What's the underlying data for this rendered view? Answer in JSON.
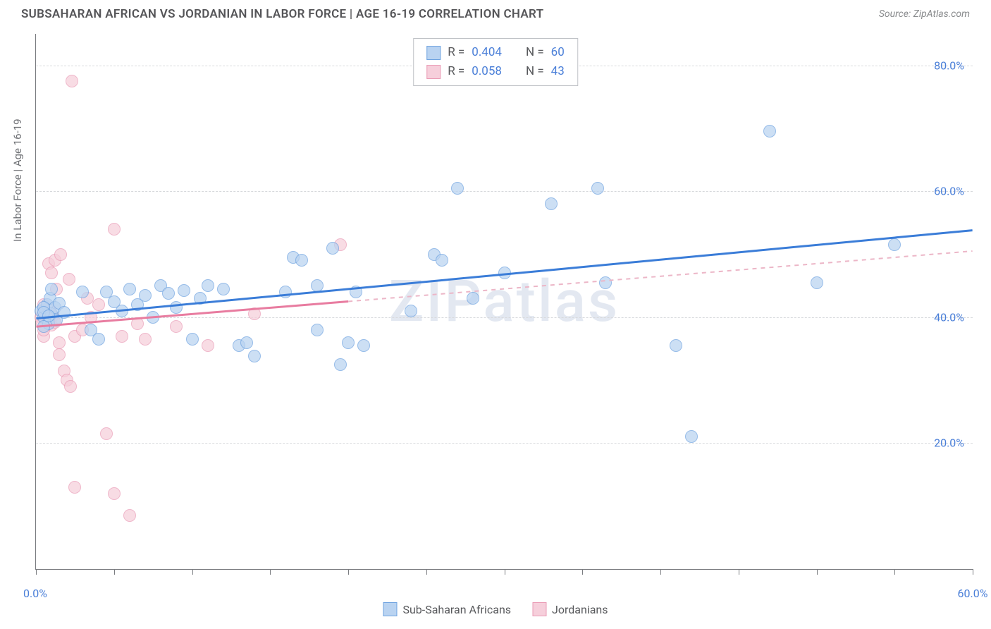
{
  "header": {
    "title": "SUBSAHARAN AFRICAN VS JORDANIAN IN LABOR FORCE | AGE 16-19 CORRELATION CHART",
    "source": "Source: ZipAtlas.com"
  },
  "chart": {
    "type": "scatter",
    "watermark": "ZIPatlas",
    "y_axis_title": "In Labor Force | Age 16-19",
    "xlim": [
      0,
      60
    ],
    "ylim": [
      0,
      85
    ],
    "x_ticks": [
      0,
      5,
      10,
      15,
      20,
      25,
      30,
      35,
      40,
      45,
      50,
      55,
      60
    ],
    "x_labels_shown": [
      {
        "v": 0,
        "t": "0.0%"
      },
      {
        "v": 60,
        "t": "60.0%"
      }
    ],
    "y_gridlines": [
      20,
      40,
      60,
      80
    ],
    "y_labels": [
      "20.0%",
      "40.0%",
      "60.0%",
      "80.0%"
    ],
    "background_color": "#ffffff",
    "grid_color": "#d7d9dc",
    "axis_color": "#7a7c80",
    "label_color": "#4a7fd8",
    "series": [
      {
        "name": "Sub-Saharan Africans",
        "key": "ssa",
        "point_fill": "#b9d3f1",
        "point_stroke": "#6fa3e0",
        "point_radius": 9,
        "point_opacity": 0.72,
        "line_color": "#3b7dd8",
        "line_width": 3,
        "line_dash": "solid",
        "line_x_extent": [
          0,
          60
        ],
        "r": 0.404,
        "n": 60,
        "regression": {
          "y_at_xmin": 39.8,
          "y_at_xmax": 53.8
        },
        "points": [
          [
            0.3,
            41
          ],
          [
            0.5,
            40
          ],
          [
            0.7,
            42
          ],
          [
            0.8,
            39
          ],
          [
            0.9,
            43
          ],
          [
            1.0,
            40.5
          ],
          [
            1.2,
            41.5
          ],
          [
            1.3,
            39.5
          ],
          [
            1.5,
            42.2
          ],
          [
            1.8,
            40.8
          ],
          [
            0.5,
            38.5
          ],
          [
            0.5,
            41.5
          ],
          [
            0.5,
            40.8
          ],
          [
            0.8,
            40.2
          ],
          [
            1.0,
            44.5
          ],
          [
            3,
            44
          ],
          [
            3.5,
            38
          ],
          [
            4,
            36.5
          ],
          [
            4.5,
            44
          ],
          [
            5,
            42.5
          ],
          [
            5.5,
            41
          ],
          [
            6,
            44.5
          ],
          [
            6.5,
            42
          ],
          [
            7,
            43.5
          ],
          [
            7.5,
            40
          ],
          [
            8,
            45
          ],
          [
            8.5,
            43.8
          ],
          [
            9,
            41.5
          ],
          [
            9.5,
            44.2
          ],
          [
            10,
            36.5
          ],
          [
            10.5,
            43
          ],
          [
            11,
            45
          ],
          [
            12,
            44.5
          ],
          [
            13,
            35.5
          ],
          [
            13.5,
            36
          ],
          [
            14,
            33.8
          ],
          [
            16,
            44
          ],
          [
            16.5,
            49.5
          ],
          [
            17,
            49
          ],
          [
            18,
            45
          ],
          [
            18,
            38
          ],
          [
            19,
            51
          ],
          [
            19.5,
            32.5
          ],
          [
            20,
            36
          ],
          [
            20.5,
            44
          ],
          [
            21,
            35.5
          ],
          [
            24,
            41
          ],
          [
            25.5,
            50
          ],
          [
            26,
            49
          ],
          [
            27,
            60.5
          ],
          [
            28,
            43
          ],
          [
            30,
            47
          ],
          [
            33,
            58
          ],
          [
            36,
            60.5
          ],
          [
            36.5,
            45.5
          ],
          [
            41,
            35.5
          ],
          [
            42,
            21
          ],
          [
            47,
            69.5
          ],
          [
            50,
            45.5
          ],
          [
            55,
            51.5
          ]
        ]
      },
      {
        "name": "Jordanians",
        "key": "jor",
        "point_fill": "#f6cfdb",
        "point_stroke": "#ea9cb6",
        "point_radius": 9,
        "point_opacity": 0.72,
        "line_color": "#e87ca0",
        "line_dashed_color": "#ecb6c7",
        "line_width": 3,
        "line_dash_after": 20,
        "r": 0.058,
        "n": 43,
        "regression": {
          "y_at_xmin": 38.5,
          "y_at_xmax": 50.5
        },
        "points": [
          [
            0.3,
            40
          ],
          [
            0.4,
            39
          ],
          [
            0.5,
            41
          ],
          [
            0.6,
            38.5
          ],
          [
            0.7,
            40.5
          ],
          [
            0.8,
            39.5
          ],
          [
            0.9,
            41.2
          ],
          [
            1.0,
            38.8
          ],
          [
            1.1,
            40.2
          ],
          [
            1.2,
            39.2
          ],
          [
            0.5,
            37
          ],
          [
            0.5,
            42
          ],
          [
            0.5,
            38
          ],
          [
            0.8,
            39.8
          ],
          [
            0.8,
            48.5
          ],
          [
            1.0,
            47
          ],
          [
            1.2,
            49
          ],
          [
            1.3,
            44.5
          ],
          [
            1.5,
            36
          ],
          [
            1.5,
            34
          ],
          [
            1.6,
            50
          ],
          [
            1.8,
            31.5
          ],
          [
            2,
            30
          ],
          [
            2.1,
            46
          ],
          [
            2.2,
            29
          ],
          [
            2.3,
            77.5
          ],
          [
            2.5,
            37
          ],
          [
            3,
            38
          ],
          [
            3.5,
            40
          ],
          [
            4,
            42
          ],
          [
            4.5,
            21.5
          ],
          [
            5,
            54
          ],
          [
            5.5,
            37
          ],
          [
            5,
            12
          ],
          [
            6,
            8.5
          ],
          [
            6.5,
            39
          ],
          [
            7,
            36.5
          ],
          [
            2.5,
            13
          ],
          [
            3.3,
            43
          ],
          [
            9,
            38.5
          ],
          [
            11,
            35.5
          ],
          [
            14,
            40.5
          ],
          [
            19.5,
            51.5
          ]
        ]
      }
    ],
    "rn_legend": {
      "rows": [
        {
          "swatch_fill": "#b9d3f1",
          "swatch_stroke": "#6fa3e0",
          "r_label": "R =",
          "r_val": "0.404",
          "n_label": "N =",
          "n_val": "60"
        },
        {
          "swatch_fill": "#f6cfdb",
          "swatch_stroke": "#ea9cb6",
          "r_label": "R =",
          "r_val": "0.058",
          "n_label": "N =",
          "n_val": "43"
        }
      ]
    },
    "bottom_legend": [
      {
        "swatch_fill": "#b9d3f1",
        "swatch_stroke": "#6fa3e0",
        "label": "Sub-Saharan Africans"
      },
      {
        "swatch_fill": "#f6cfdb",
        "swatch_stroke": "#ea9cb6",
        "label": "Jordanians"
      }
    ]
  }
}
